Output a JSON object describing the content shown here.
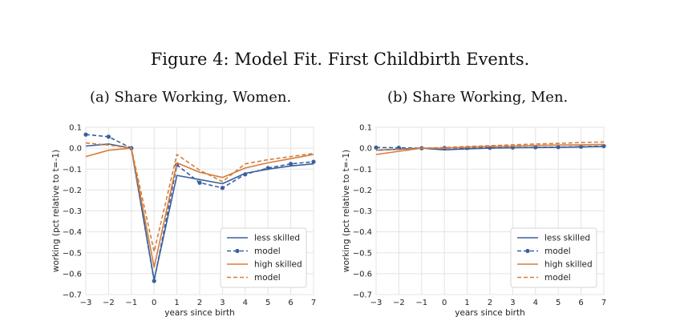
{
  "figure": {
    "title": "Figure 4: Model Fit. First Childbirth Events."
  },
  "chart_data": [
    {
      "type": "line",
      "caption": "(a) Share Working, Women.",
      "xlabel": "years since birth",
      "ylabel": "working (pct relative to t=-1)",
      "x": [
        -3,
        -2,
        -1,
        0,
        1,
        2,
        3,
        4,
        5,
        6,
        7
      ],
      "xlim": [
        -3,
        7
      ],
      "ylim": [
        -0.7,
        0.1
      ],
      "xticks": [
        "−3",
        "−2",
        "−1",
        "0",
        "1",
        "2",
        "3",
        "4",
        "5",
        "6",
        "7"
      ],
      "yticks": [
        "0.1",
        "0.0",
        "−0.1",
        "−0.2",
        "−0.3",
        "−0.4",
        "−0.5",
        "−0.6",
        "−0.7"
      ],
      "grid": true,
      "legend_position": "lower-right",
      "series": [
        {
          "name": "less skilled",
          "style": "solid",
          "marker": false,
          "color": "#3a5f9e",
          "values": [
            0.01,
            0.02,
            0.0,
            -0.63,
            -0.13,
            -0.15,
            -0.17,
            -0.12,
            -0.1,
            -0.085,
            -0.075
          ]
        },
        {
          "name": "model",
          "style": "dashed",
          "marker": true,
          "color": "#3a5f9e",
          "values": [
            0.065,
            0.055,
            0.0,
            -0.635,
            -0.08,
            -0.165,
            -0.19,
            -0.125,
            -0.095,
            -0.075,
            -0.065
          ]
        },
        {
          "name": "high skilled",
          "style": "solid",
          "marker": false,
          "color": "#d57d3c",
          "values": [
            -0.04,
            -0.01,
            0.0,
            -0.57,
            -0.07,
            -0.115,
            -0.14,
            -0.095,
            -0.07,
            -0.05,
            -0.03
          ]
        },
        {
          "name": "model",
          "style": "dashed",
          "marker": false,
          "color": "#d57d3c",
          "values": [
            0.025,
            0.015,
            0.0,
            -0.495,
            -0.03,
            -0.105,
            -0.16,
            -0.075,
            -0.055,
            -0.04,
            -0.025
          ]
        }
      ]
    },
    {
      "type": "line",
      "caption": "(b) Share Working, Men.",
      "xlabel": "years since birth",
      "ylabel": "working (pct relative to t=-1)",
      "x": [
        -3,
        -2,
        -1,
        0,
        1,
        2,
        3,
        4,
        5,
        6,
        7
      ],
      "xlim": [
        -3,
        7
      ],
      "ylim": [
        -0.7,
        0.1
      ],
      "xticks": [
        "−3",
        "−2",
        "−1",
        "0",
        "1",
        "2",
        "3",
        "4",
        "5",
        "6",
        "7"
      ],
      "yticks": [
        "0.1",
        "0.0",
        "−0.1",
        "−0.2",
        "−0.3",
        "−0.4",
        "−0.5",
        "−0.6",
        "−0.7"
      ],
      "grid": true,
      "legend_position": "lower-right",
      "series": [
        {
          "name": "less skilled",
          "style": "solid",
          "marker": false,
          "color": "#3a5f9e",
          "values": [
            -0.01,
            -0.005,
            0.0,
            -0.008,
            -0.003,
            0.0,
            0.002,
            0.003,
            0.004,
            0.006,
            0.008
          ]
        },
        {
          "name": "model",
          "style": "dashed",
          "marker": true,
          "color": "#3a5f9e",
          "values": [
            0.003,
            0.002,
            0.0,
            0.001,
            0.001,
            0.002,
            0.003,
            0.004,
            0.005,
            0.007,
            0.01
          ]
        },
        {
          "name": "high skilled",
          "style": "solid",
          "marker": false,
          "color": "#d57d3c",
          "values": [
            -0.03,
            -0.015,
            0.0,
            0.0,
            0.005,
            0.008,
            0.01,
            0.013,
            0.015,
            0.016,
            0.018
          ]
        },
        {
          "name": "model",
          "style": "dashed",
          "marker": false,
          "color": "#d57d3c",
          "values": [
            -0.01,
            -0.005,
            0.0,
            0.003,
            0.008,
            0.012,
            0.016,
            0.02,
            0.023,
            0.027,
            0.03
          ]
        }
      ]
    }
  ]
}
